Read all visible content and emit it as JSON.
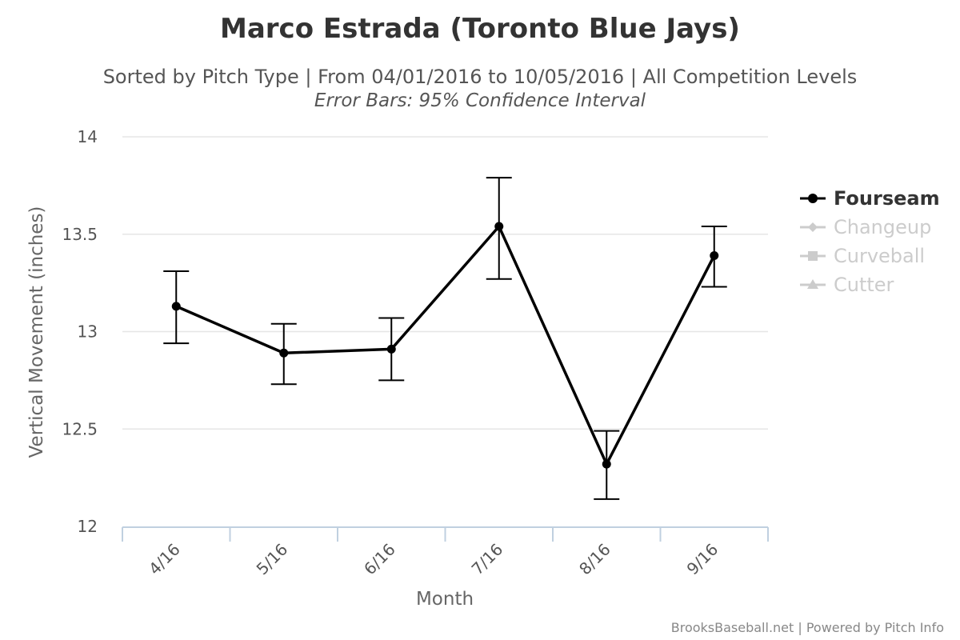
{
  "chart_data": {
    "type": "line",
    "title": "Marco Estrada (Toronto Blue Jays)",
    "subtitle": "Sorted by Pitch Type | From 04/01/2016 to 10/05/2016 | All Competition Levels",
    "subtitle2": "Error Bars: 95% Confidence Interval",
    "xlabel": "Month",
    "ylabel": "Vertical Movement (inches)",
    "categories": [
      "4/16",
      "5/16",
      "6/16",
      "7/16",
      "8/16",
      "9/16"
    ],
    "ylim": [
      12,
      14
    ],
    "yticks": [
      "12",
      "12.5",
      "13",
      "13.5",
      "14"
    ],
    "grid": true,
    "legend_position": "right",
    "series": [
      {
        "name": "Fourseam",
        "visible": true,
        "color": "#000000",
        "values": [
          13.13,
          12.89,
          12.91,
          13.54,
          12.32,
          13.39
        ],
        "error_low": [
          12.94,
          12.73,
          12.75,
          13.27,
          12.14,
          13.23
        ],
        "error_high": [
          13.31,
          13.04,
          13.07,
          13.79,
          12.49,
          13.54
        ]
      },
      {
        "name": "Changeup",
        "visible": false,
        "color": "#cccccc",
        "marker": "diamond"
      },
      {
        "name": "Curveball",
        "visible": false,
        "color": "#cccccc",
        "marker": "square"
      },
      {
        "name": "Cutter",
        "visible": false,
        "color": "#cccccc",
        "marker": "triangle"
      }
    ],
    "credits": "BrooksBaseball.net | Powered by Pitch Info"
  }
}
